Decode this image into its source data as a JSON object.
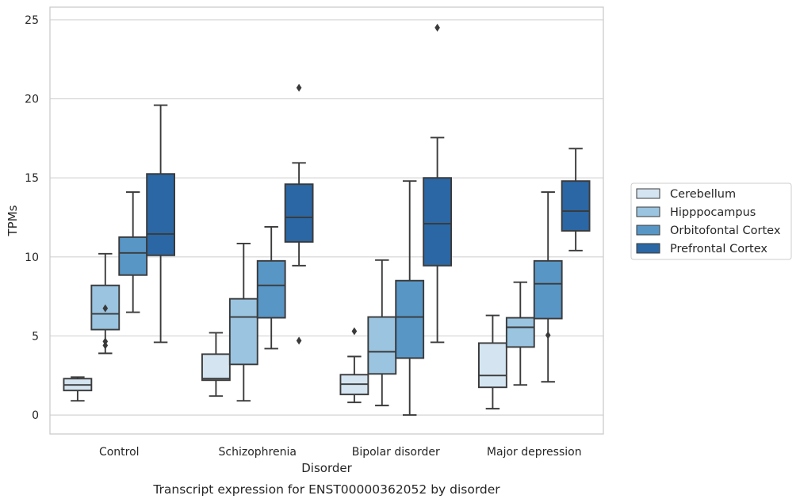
{
  "chart_data": {
    "type": "boxplot",
    "caption": "Transcript expression for ENST00000362052 by disorder",
    "xlabel": "Disorder",
    "ylabel": "TPMs",
    "ylim": [
      -1.2,
      25.8
    ],
    "yticks": [
      0,
      5,
      10,
      15,
      20,
      25
    ],
    "grid": true,
    "legend_position": "right",
    "categories": [
      "Control",
      "Schizophrenia",
      "Bipolar disorder",
      "Major depression"
    ],
    "series": [
      {
        "name": "Cerebellum",
        "color": "#d4e4f1",
        "boxes": [
          {
            "whislo": 0.9,
            "q1": 1.55,
            "med": 1.9,
            "q3": 2.3,
            "whishi": 2.4,
            "fliers": []
          },
          {
            "whislo": 1.2,
            "q1": 2.2,
            "med": 2.3,
            "q3": 3.85,
            "whishi": 5.2,
            "fliers": []
          },
          {
            "whislo": 0.8,
            "q1": 1.3,
            "med": 1.95,
            "q3": 2.55,
            "whishi": 3.7,
            "fliers": [
              5.3
            ]
          },
          {
            "whislo": 0.4,
            "q1": 1.75,
            "med": 2.5,
            "q3": 4.55,
            "whishi": 6.3,
            "fliers": []
          }
        ]
      },
      {
        "name": "Hipppocampus",
        "color": "#9ac4e0",
        "boxes": [
          {
            "whislo": 3.9,
            "q1": 5.4,
            "med": 6.4,
            "q3": 8.2,
            "whishi": 10.2,
            "fliers": [
              6.75,
              4.65,
              4.4
            ]
          },
          {
            "whislo": 0.9,
            "q1": 3.2,
            "med": 6.2,
            "q3": 7.35,
            "whishi": 10.85,
            "fliers": []
          },
          {
            "whislo": 0.6,
            "q1": 2.6,
            "med": 4.0,
            "q3": 6.2,
            "whishi": 9.8,
            "fliers": []
          },
          {
            "whislo": 1.9,
            "q1": 4.3,
            "med": 5.55,
            "q3": 6.15,
            "whishi": 8.4,
            "fliers": []
          }
        ]
      },
      {
        "name": "Orbitofontal Cortex",
        "color": "#5896c6",
        "boxes": [
          {
            "whislo": 6.5,
            "q1": 8.85,
            "med": 10.25,
            "q3": 11.25,
            "whishi": 14.1,
            "fliers": []
          },
          {
            "whislo": 4.2,
            "q1": 6.15,
            "med": 8.2,
            "q3": 9.75,
            "whishi": 11.9,
            "fliers": []
          },
          {
            "whislo": 0.0,
            "q1": 3.6,
            "med": 6.2,
            "q3": 8.5,
            "whishi": 14.8,
            "fliers": []
          },
          {
            "whislo": 2.1,
            "q1": 6.1,
            "med": 8.3,
            "q3": 9.75,
            "whishi": 14.1,
            "fliers": [
              5.05
            ]
          }
        ]
      },
      {
        "name": "Prefrontal Cortex",
        "color": "#2b67a4",
        "boxes": [
          {
            "whislo": 4.6,
            "q1": 10.1,
            "med": 11.45,
            "q3": 15.25,
            "whishi": 19.6,
            "fliers": []
          },
          {
            "whislo": 9.45,
            "q1": 10.95,
            "med": 12.5,
            "q3": 14.6,
            "whishi": 15.95,
            "fliers": [
              20.7,
              4.7
            ]
          },
          {
            "whislo": 4.6,
            "q1": 9.45,
            "med": 12.1,
            "q3": 15.0,
            "whishi": 17.55,
            "fliers": [
              24.5
            ]
          },
          {
            "whislo": 10.4,
            "q1": 11.65,
            "med": 12.9,
            "q3": 14.8,
            "whishi": 16.85,
            "fliers": []
          }
        ]
      }
    ]
  }
}
